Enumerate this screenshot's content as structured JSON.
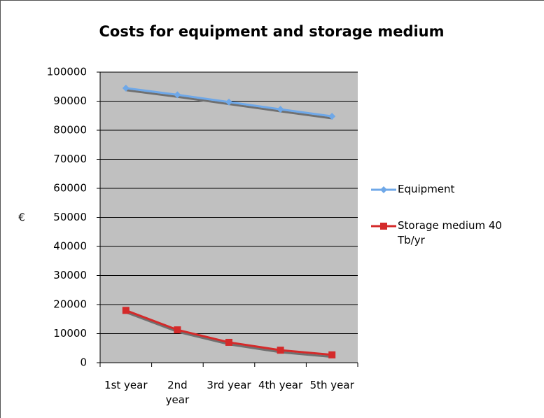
{
  "chart_data": {
    "type": "line",
    "title": "Costs for equipment and storage medium",
    "y_label": "€",
    "categories": [
      "1st year",
      "2nd year",
      "3rd year",
      "4th year",
      "5th year"
    ],
    "series": [
      {
        "name": "Equipment",
        "color": "#6fa8e8",
        "marker": "diamond",
        "values": [
          94500,
          92200,
          89700,
          87200,
          84800
        ]
      },
      {
        "name": "Storage medium 40 Tb/yr",
        "color": "#d42a2a",
        "marker": "square",
        "values": [
          18000,
          11300,
          7000,
          4300,
          2700
        ]
      }
    ],
    "ylim": [
      0,
      100000
    ],
    "yticks": [
      0,
      10000,
      20000,
      30000,
      40000,
      50000,
      60000,
      70000,
      80000,
      90000,
      100000
    ],
    "grid": true,
    "legend": "right"
  }
}
